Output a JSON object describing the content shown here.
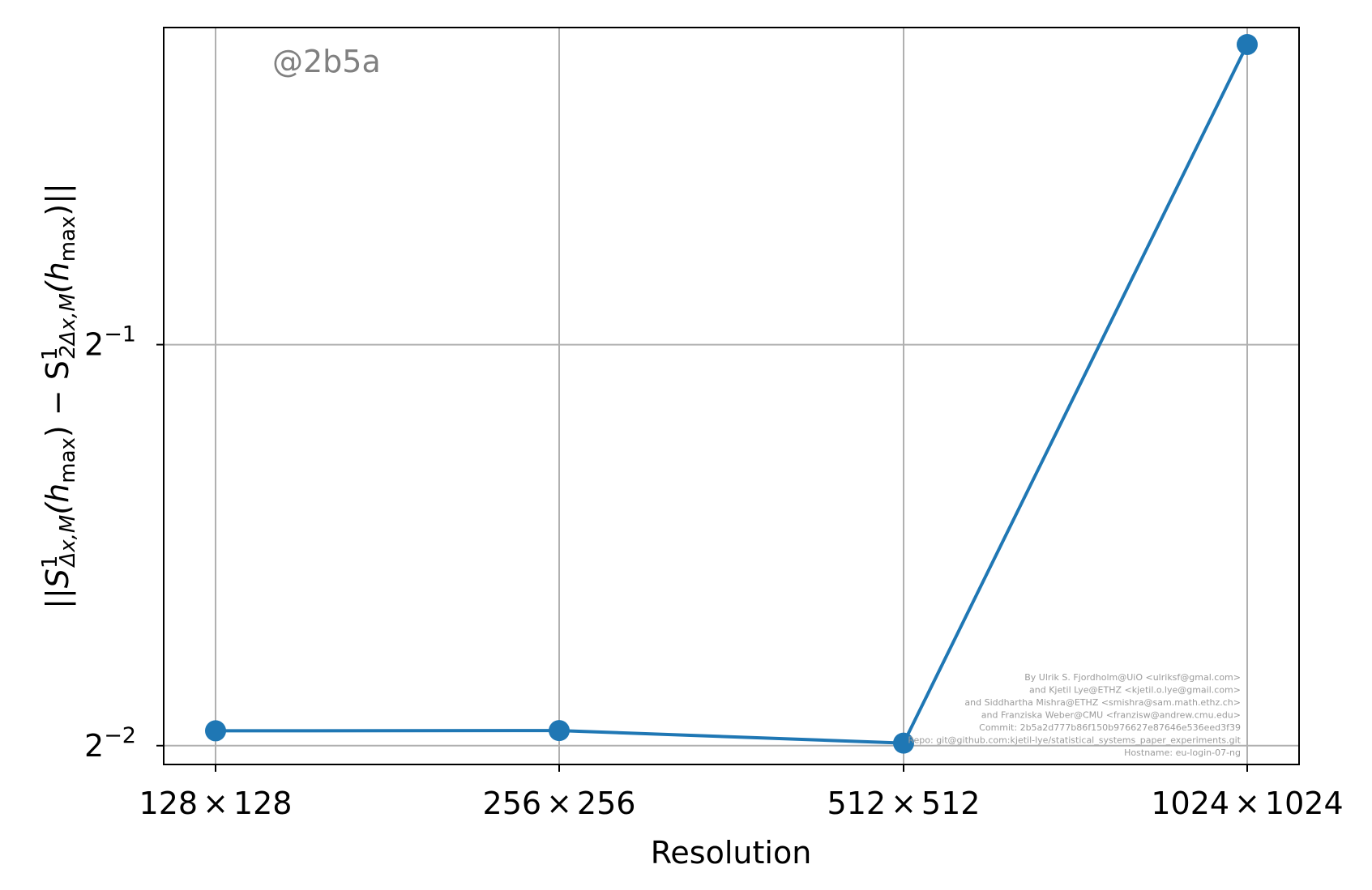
{
  "chart_data": {
    "type": "line",
    "xlabel": "Resolution",
    "ylabel": "||S¹Δx,M(hmax) − S¹2Δx,M(hmax)||",
    "ylabel_parts": {
      "prefix": "||S",
      "sup1": "1",
      "sub1": "Δx,M",
      "open1": "(h",
      "hsub1": "max",
      "mid": ") − S",
      "sup2": "1",
      "sub2": "2Δx,M",
      "open2": "(h",
      "hsub2": "max",
      "suffix": ")||"
    },
    "y_scale": "log2",
    "ylim": [
      0.242,
      0.865
    ],
    "grid": true,
    "x_ticks": [
      {
        "base": "128",
        "op": "×",
        "exp": "128"
      },
      {
        "base": "256",
        "op": "×",
        "exp": "256"
      },
      {
        "base": "512",
        "op": "×",
        "exp": "512"
      },
      {
        "base": "1024",
        "op": "×",
        "exp": "1024"
      }
    ],
    "y_ticks": [
      {
        "value": 0.5,
        "base": "2",
        "exp": "−1"
      },
      {
        "value": 0.25,
        "base": "2",
        "exp": "−2"
      }
    ],
    "series": [
      {
        "color": "#1f77b4",
        "x": [
          "128×128",
          "256×256",
          "512×512",
          "1024×1024"
        ],
        "values": [
          0.2565,
          0.2566,
          0.2511,
          0.84
        ]
      }
    ]
  },
  "watermark": "@2b5a",
  "credits": [
    "By Ulrik S. Fjordholm@UiO <ulriksf@gmal.com>",
    "and Kjetil Lye@ETHZ <kjetil.o.lye@gmail.com>",
    "and Siddhartha Mishra@ETHZ <smishra@sam.math.ethz.ch>",
    "and Franziska Weber@CMU <franzisw@andrew.cmu.edu>",
    "Commit: 2b5a2d777b86f150b976627e87646e536eed3f39",
    "Repo: git@github.com:kjetil-lye/statistical_systems_paper_experiments.git",
    "Hostname: eu-login-07-ng"
  ]
}
